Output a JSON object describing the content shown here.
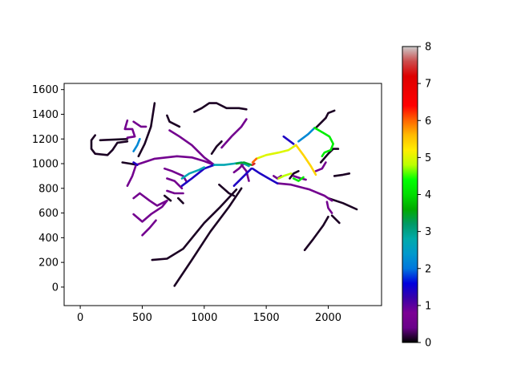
{
  "chart_data": {
    "type": "line",
    "title": "",
    "xlabel": "",
    "ylabel": "",
    "xlim": [
      -130,
      2430
    ],
    "ylim": [
      -150,
      1650
    ],
    "xticks": [
      0,
      500,
      1000,
      1500,
      2000
    ],
    "yticks": [
      0,
      200,
      400,
      600,
      800,
      1000,
      1200,
      1400,
      1600
    ],
    "grid": false,
    "colorbar": {
      "colormap": "nipy_spectral",
      "range": [
        0,
        8
      ],
      "ticks": [
        0,
        1,
        2,
        3,
        4,
        5,
        6,
        7,
        8
      ]
    },
    "segments": [
      {
        "value": 0.1,
        "points": [
          [
            760,
            10
          ],
          [
            900,
            220
          ],
          [
            1050,
            450
          ],
          [
            1200,
            650
          ],
          [
            1300,
            800
          ]
        ]
      },
      {
        "value": 0.1,
        "points": [
          [
            580,
            220
          ],
          [
            700,
            230
          ],
          [
            830,
            310
          ],
          [
            1000,
            520
          ],
          [
            1130,
            650
          ],
          [
            1260,
            790
          ]
        ]
      },
      {
        "value": 0.1,
        "points": [
          [
            1810,
            300
          ],
          [
            1880,
            390
          ],
          [
            1960,
            500
          ],
          [
            2000,
            570
          ]
        ]
      },
      {
        "value": 0.1,
        "points": [
          [
            2000,
            720
          ],
          [
            2120,
            680
          ],
          [
            2230,
            630
          ]
        ]
      },
      {
        "value": 0.1,
        "points": [
          [
            2030,
            580
          ],
          [
            2090,
            520
          ]
        ]
      },
      {
        "value": 0.1,
        "points": [
          [
            600,
            1490
          ],
          [
            570,
            1300
          ],
          [
            520,
            1160
          ],
          [
            470,
            1060
          ]
        ]
      },
      {
        "value": 0.1,
        "points": [
          [
            160,
            1190
          ],
          [
            380,
            1200
          ]
        ]
      },
      {
        "value": 0.1,
        "points": [
          [
            120,
            1230
          ],
          [
            90,
            1190
          ],
          [
            90,
            1120
          ],
          [
            120,
            1080
          ],
          [
            220,
            1070
          ],
          [
            260,
            1110
          ],
          [
            300,
            1170
          ],
          [
            380,
            1180
          ]
        ]
      },
      {
        "value": 0.1,
        "points": [
          [
            920,
            1420
          ],
          [
            980,
            1450
          ],
          [
            1040,
            1490
          ],
          [
            1100,
            1490
          ],
          [
            1180,
            1450
          ],
          [
            1280,
            1450
          ],
          [
            1340,
            1440
          ]
        ]
      },
      {
        "value": 0.1,
        "points": [
          [
            700,
            1390
          ],
          [
            720,
            1340
          ],
          [
            800,
            1300
          ]
        ]
      },
      {
        "value": 0.1,
        "points": [
          [
            1980,
            1370
          ],
          [
            2000,
            1410
          ],
          [
            2050,
            1430
          ]
        ]
      },
      {
        "value": 0.1,
        "points": [
          [
            1900,
            1290
          ],
          [
            1950,
            1340
          ],
          [
            1980,
            1370
          ]
        ]
      },
      {
        "value": 0.1,
        "points": [
          [
            2050,
            900
          ],
          [
            2120,
            910
          ],
          [
            2170,
            920
          ]
        ]
      },
      {
        "value": 0.1,
        "points": [
          [
            340,
            1010
          ],
          [
            400,
            1000
          ],
          [
            460,
            990
          ]
        ]
      },
      {
        "value": 0.1,
        "points": [
          [
            1120,
            830
          ],
          [
            1200,
            760
          ],
          [
            1240,
            740
          ]
        ]
      },
      {
        "value": 0.1,
        "points": [
          [
            680,
            740
          ],
          [
            730,
            700
          ]
        ]
      },
      {
        "value": 0.1,
        "points": [
          [
            790,
            720
          ],
          [
            830,
            680
          ]
        ]
      },
      {
        "value": 0.1,
        "points": [
          [
            1060,
            1080
          ],
          [
            1100,
            1140
          ],
          [
            1140,
            1180
          ]
        ]
      },
      {
        "value": 0.1,
        "points": [
          [
            1690,
            880
          ],
          [
            1720,
            920
          ],
          [
            1760,
            940
          ]
        ]
      },
      {
        "value": 0.1,
        "points": [
          [
            1940,
            1010
          ],
          [
            2000,
            1080
          ],
          [
            2040,
            1120
          ],
          [
            2080,
            1120
          ]
        ]
      },
      {
        "value": 0.6,
        "points": [
          [
            450,
            990
          ],
          [
            600,
            1040
          ],
          [
            780,
            1060
          ],
          [
            900,
            1050
          ],
          [
            1000,
            1020
          ],
          [
            1080,
            990
          ]
        ]
      },
      {
        "value": 0.6,
        "points": [
          [
            1080,
            990
          ],
          [
            1000,
            1050
          ],
          [
            900,
            1150
          ],
          [
            800,
            1220
          ],
          [
            720,
            1270
          ]
        ]
      },
      {
        "value": 0.6,
        "points": [
          [
            1140,
            1130
          ],
          [
            1220,
            1220
          ],
          [
            1300,
            1300
          ],
          [
            1340,
            1360
          ]
        ]
      },
      {
        "value": 0.6,
        "points": [
          [
            1590,
            840
          ],
          [
            1700,
            830
          ],
          [
            1850,
            790
          ],
          [
            1970,
            740
          ],
          [
            2030,
            700
          ]
        ]
      },
      {
        "value": 0.6,
        "points": [
          [
            1990,
            690
          ],
          [
            2000,
            640
          ],
          [
            2030,
            600
          ]
        ]
      },
      {
        "value": 0.6,
        "points": [
          [
            380,
            820
          ],
          [
            420,
            900
          ],
          [
            450,
            990
          ]
        ]
      },
      {
        "value": 0.6,
        "points": [
          [
            380,
            1350
          ],
          [
            360,
            1280
          ],
          [
            420,
            1280
          ],
          [
            440,
            1220
          ],
          [
            380,
            1210
          ]
        ]
      },
      {
        "value": 0.6,
        "points": [
          [
            430,
            1340
          ],
          [
            490,
            1300
          ],
          [
            530,
            1300
          ]
        ]
      },
      {
        "value": 0.6,
        "points": [
          [
            430,
            720
          ],
          [
            480,
            760
          ],
          [
            560,
            700
          ],
          [
            620,
            660
          ],
          [
            700,
            700
          ]
        ]
      },
      {
        "value": 0.6,
        "points": [
          [
            430,
            590
          ],
          [
            500,
            530
          ],
          [
            570,
            590
          ],
          [
            660,
            650
          ],
          [
            700,
            700
          ]
        ]
      },
      {
        "value": 0.6,
        "points": [
          [
            500,
            420
          ],
          [
            560,
            480
          ],
          [
            610,
            540
          ]
        ]
      },
      {
        "value": 0.6,
        "points": [
          [
            700,
            780
          ],
          [
            760,
            760
          ],
          [
            830,
            760
          ]
        ]
      },
      {
        "value": 0.6,
        "points": [
          [
            700,
            880
          ],
          [
            760,
            860
          ],
          [
            820,
            800
          ]
        ]
      },
      {
        "value": 0.6,
        "points": [
          [
            680,
            960
          ],
          [
            740,
            940
          ],
          [
            830,
            900
          ],
          [
            860,
            850
          ]
        ]
      },
      {
        "value": 0.6,
        "points": [
          [
            1240,
            930
          ],
          [
            1280,
            960
          ],
          [
            1320,
            1000
          ]
        ]
      },
      {
        "value": 0.6,
        "points": [
          [
            1360,
            860
          ],
          [
            1340,
            940
          ],
          [
            1300,
            990
          ]
        ]
      },
      {
        "value": 0.6,
        "points": [
          [
            1820,
            870
          ],
          [
            1780,
            880
          ],
          [
            1720,
            900
          ]
        ]
      },
      {
        "value": 0.6,
        "points": [
          [
            1900,
            940
          ],
          [
            1950,
            960
          ],
          [
            1980,
            1010
          ]
        ]
      },
      {
        "value": 0.6,
        "points": [
          [
            1560,
            900
          ],
          [
            1590,
            880
          ],
          [
            1620,
            900
          ]
        ]
      },
      {
        "value": 1.4,
        "points": [
          [
            820,
            820
          ],
          [
            900,
            880
          ],
          [
            1000,
            960
          ],
          [
            1080,
            990
          ]
        ]
      },
      {
        "value": 1.4,
        "points": [
          [
            1380,
            960
          ],
          [
            1320,
            900
          ],
          [
            1270,
            850
          ],
          [
            1240,
            820
          ]
        ]
      },
      {
        "value": 1.4,
        "points": [
          [
            1390,
            960
          ],
          [
            1450,
            920
          ],
          [
            1520,
            880
          ],
          [
            1590,
            840
          ]
        ]
      },
      {
        "value": 1.4,
        "points": [
          [
            1720,
            1160
          ],
          [
            1680,
            1190
          ],
          [
            1640,
            1220
          ]
        ]
      },
      {
        "value": 1.4,
        "points": [
          [
            430,
            1010
          ],
          [
            460,
            990
          ]
        ]
      },
      {
        "value": 2.2,
        "points": [
          [
            1760,
            1180
          ],
          [
            1840,
            1240
          ],
          [
            1890,
            1290
          ]
        ]
      },
      {
        "value": 2.2,
        "points": [
          [
            430,
            1100
          ],
          [
            460,
            1150
          ],
          [
            480,
            1200
          ]
        ]
      },
      {
        "value": 2.7,
        "points": [
          [
            1080,
            990
          ],
          [
            1160,
            990
          ],
          [
            1240,
            1000
          ],
          [
            1300,
            1010
          ],
          [
            1360,
            980
          ]
        ]
      },
      {
        "value": 2.7,
        "points": [
          [
            820,
            880
          ],
          [
            880,
            920
          ],
          [
            960,
            950
          ],
          [
            1000,
            970
          ]
        ]
      },
      {
        "value": 3.4,
        "points": [
          [
            1260,
            1000
          ],
          [
            1320,
            1010
          ],
          [
            1380,
            990
          ]
        ]
      },
      {
        "value": 4.2,
        "points": [
          [
            1890,
            1290
          ],
          [
            1960,
            1250
          ],
          [
            2010,
            1220
          ],
          [
            2040,
            1160
          ],
          [
            2020,
            1110
          ],
          [
            1970,
            1090
          ],
          [
            1950,
            1060
          ]
        ]
      },
      {
        "value": 4.2,
        "points": [
          [
            1720,
            880
          ],
          [
            1760,
            860
          ],
          [
            1800,
            890
          ]
        ]
      },
      {
        "value": 4.8,
        "points": [
          [
            1600,
            880
          ],
          [
            1640,
            900
          ],
          [
            1700,
            920
          ]
        ]
      },
      {
        "value": 5.0,
        "points": [
          [
            1420,
            1040
          ],
          [
            1500,
            1070
          ],
          [
            1600,
            1090
          ],
          [
            1680,
            1110
          ],
          [
            1740,
            1150
          ]
        ]
      },
      {
        "value": 5.4,
        "points": [
          [
            1740,
            1150
          ],
          [
            1800,
            1070
          ],
          [
            1860,
            980
          ],
          [
            1900,
            910
          ]
        ]
      },
      {
        "value": 6.0,
        "points": [
          [
            1390,
            1010
          ],
          [
            1420,
            1040
          ]
        ]
      },
      {
        "value": 7.4,
        "points": [
          [
            1390,
            990
          ],
          [
            1405,
            1000
          ]
        ]
      }
    ]
  }
}
